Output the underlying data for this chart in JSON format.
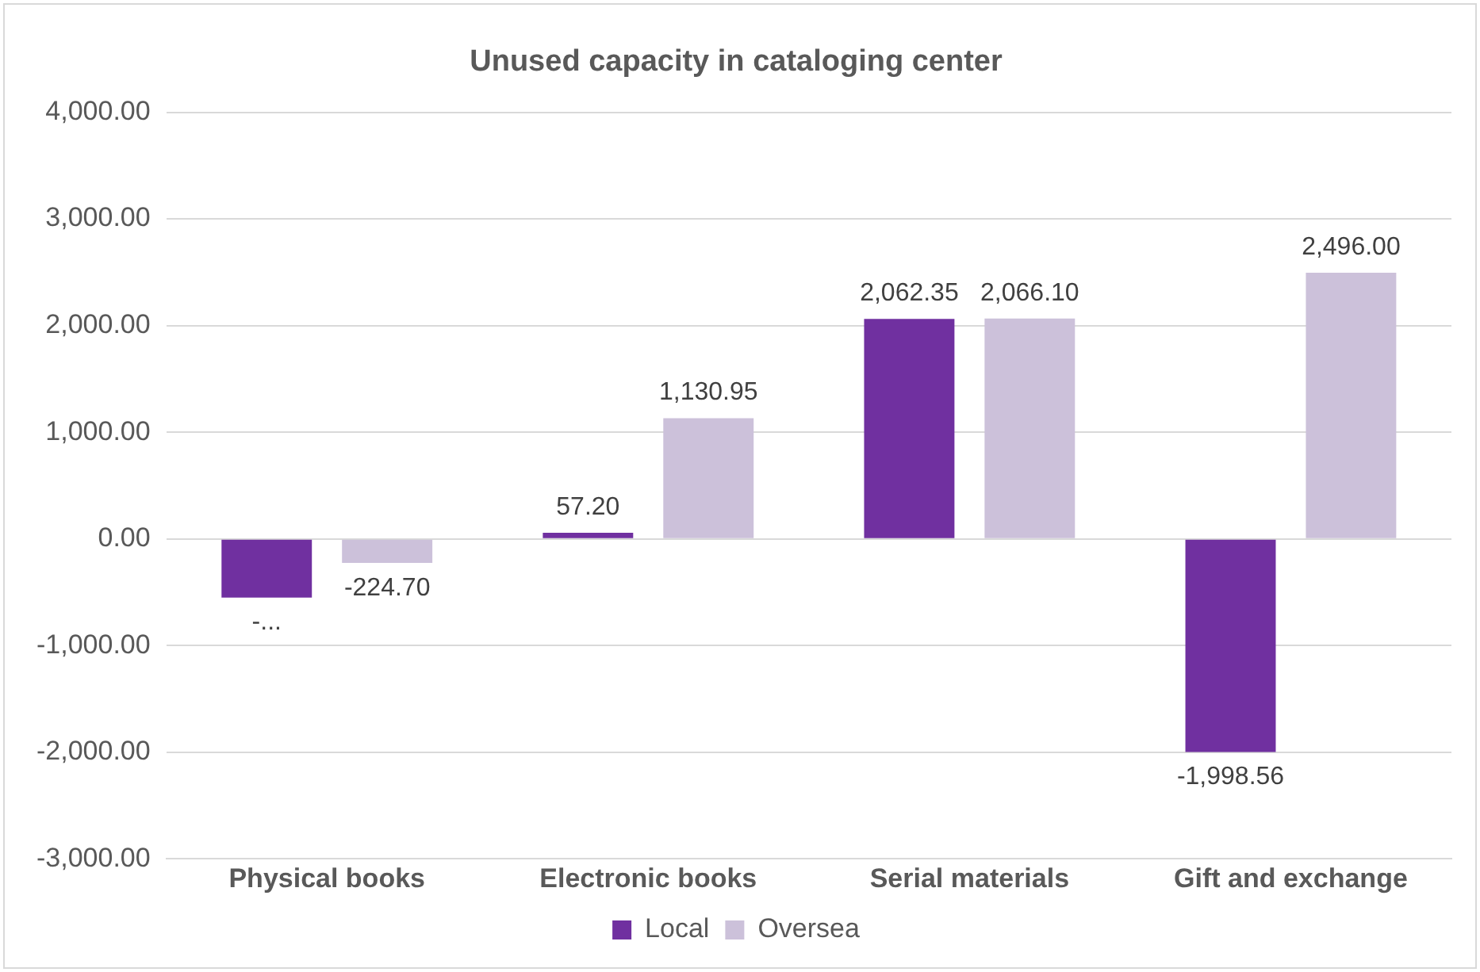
{
  "chart_data": {
    "type": "bar",
    "title": "Unused capacity in cataloging center",
    "categories": [
      "Physical books",
      "Electronic books",
      "Serial materials",
      "Gift and exchange"
    ],
    "series": [
      {
        "name": "Local",
        "color": "#7030a0",
        "values": [
          -550,
          57.2,
          2062.35,
          -1998.56
        ],
        "value_labels": [
          "-...",
          "57.20",
          "2,062.35",
          "-1,998.56"
        ]
      },
      {
        "name": "Oversea",
        "color": "#ccc1da",
        "values": [
          -224.7,
          1130.95,
          2066.1,
          2496
        ],
        "value_labels": [
          "-224.70",
          "1,130.95",
          "2,066.10",
          "2,496.00"
        ]
      }
    ],
    "ylim": [
      -3000,
      4000
    ],
    "yticks": [
      {
        "value": -3000,
        "label": "-3,000.00"
      },
      {
        "value": -2000,
        "label": "-2,000.00"
      },
      {
        "value": -1000,
        "label": "-1,000.00"
      },
      {
        "value": 0,
        "label": "0.00"
      },
      {
        "value": 1000,
        "label": "1,000.00"
      },
      {
        "value": 2000,
        "label": "2,000.00"
      },
      {
        "value": 3000,
        "label": "3,000.00"
      },
      {
        "value": 4000,
        "label": "4,000.00"
      }
    ],
    "grid": "y",
    "legend": "bottom"
  }
}
